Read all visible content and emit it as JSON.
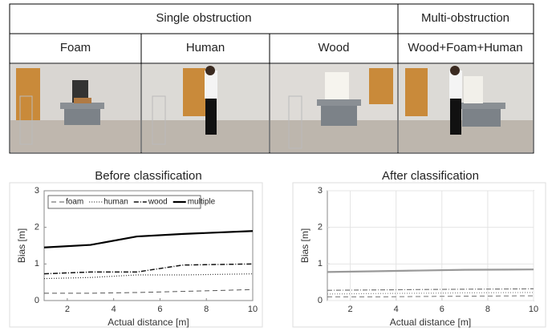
{
  "table": {
    "header": [
      "Single obstruction",
      "Multi-obstruction"
    ],
    "columns": [
      "Foam",
      "Human",
      "Wood",
      "Wood+Foam+Human"
    ]
  },
  "chart_data": [
    {
      "type": "line",
      "title": "Before classification",
      "xlabel": "Actual distance [m]",
      "ylabel": "Bias [m]",
      "x": [
        1,
        3,
        5,
        7,
        10
      ],
      "series": [
        {
          "name": "foam",
          "color": "#555555",
          "dash": "6,4",
          "width": 1,
          "values": [
            0.2,
            0.2,
            0.22,
            0.25,
            0.3
          ]
        },
        {
          "name": "human",
          "color": "#333333",
          "dash": "1,2",
          "width": 1.2,
          "values": [
            0.6,
            0.63,
            0.7,
            0.7,
            0.73
          ]
        },
        {
          "name": "wood",
          "color": "#111111",
          "dash": "6,2,1,2",
          "width": 1.5,
          "values": [
            0.73,
            0.78,
            0.78,
            0.97,
            1.0
          ]
        },
        {
          "name": "multiple",
          "color": "#000000",
          "dash": "none",
          "width": 2.2,
          "values": [
            1.45,
            1.52,
            1.75,
            1.82,
            1.9
          ]
        }
      ],
      "xlim": [
        1,
        10
      ],
      "ylim": [
        0,
        3
      ],
      "xticks": [
        2,
        4,
        6,
        8,
        10
      ],
      "yticks": [
        0,
        1,
        2,
        3
      ],
      "grid": false,
      "legend": "upper left"
    },
    {
      "type": "line",
      "title": "After classification",
      "xlabel": "Actual distance [m]",
      "ylabel": "Bias [m]",
      "x": [
        1,
        3,
        5,
        7,
        10
      ],
      "series": [
        {
          "color": "#777777",
          "dash": "6,4",
          "width": 1,
          "values": [
            0.1,
            0.1,
            0.11,
            0.12,
            0.13
          ]
        },
        {
          "color": "#888888",
          "dash": "1,2",
          "width": 1.2,
          "values": [
            0.18,
            0.19,
            0.2,
            0.21,
            0.22
          ]
        },
        {
          "color": "#777777",
          "dash": "6,2,1,2",
          "width": 1.2,
          "values": [
            0.28,
            0.29,
            0.3,
            0.31,
            0.32
          ]
        },
        {
          "color": "#999999",
          "dash": "none",
          "width": 2.2,
          "values": [
            0.78,
            0.8,
            0.82,
            0.84,
            0.85
          ]
        }
      ],
      "xlim": [
        1,
        10
      ],
      "ylim": [
        0,
        3
      ],
      "xticks": [
        2,
        4,
        6,
        8,
        10
      ],
      "yticks": [
        0,
        1,
        2,
        3
      ],
      "grid": true
    }
  ]
}
